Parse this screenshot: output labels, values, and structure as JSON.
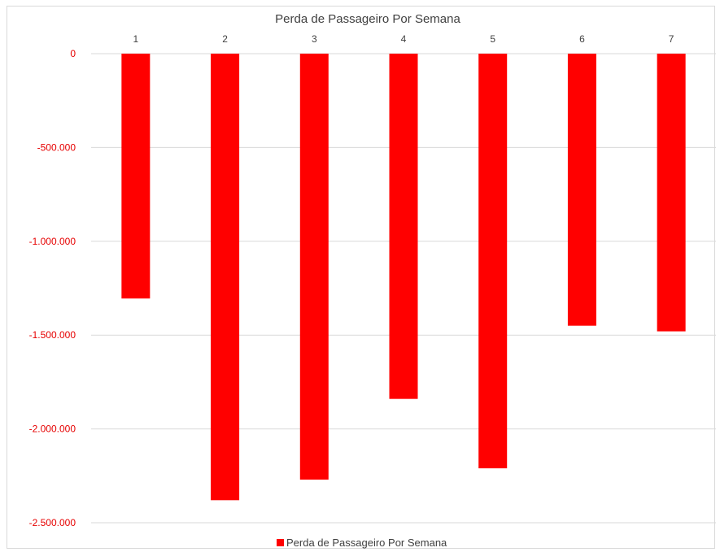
{
  "chart_data": {
    "type": "bar",
    "title": "Perda de Passageiro Por Semana",
    "categories": [
      "1",
      "2",
      "3",
      "4",
      "5",
      "6",
      "7"
    ],
    "series": [
      {
        "name": "Perda de Passageiro Por Semana",
        "values": [
          -1305000,
          -2380000,
          -2270000,
          -1840000,
          -2210000,
          -1450000,
          -1480000
        ],
        "color": "#ff0000"
      }
    ],
    "yticks": [
      0,
      -500000,
      -1000000,
      -1500000,
      -2000000,
      -2500000
    ],
    "ytick_labels": [
      "0",
      "-500.000",
      "-1.000.000",
      "-1.500.000",
      "-2.000.000",
      "-2.500.000"
    ],
    "ylim": [
      -2500000,
      0
    ],
    "grid": true,
    "legend": "bottom",
    "xaxis_position": "top"
  },
  "colors": {
    "bar": "#ff0000",
    "tick_label": "#e60000",
    "grid": "#d9d9d9",
    "text": "#404040"
  }
}
